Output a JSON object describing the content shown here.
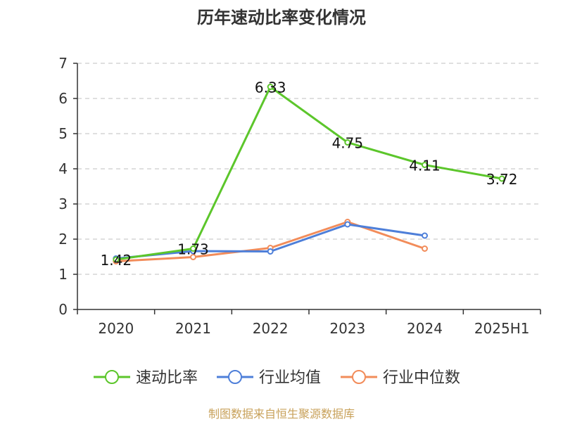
{
  "chart_data": {
    "type": "line",
    "title": "历年速动比率变化情况",
    "categories": [
      "2020",
      "2021",
      "2022",
      "2023",
      "2024",
      "2025H1"
    ],
    "ylim": [
      0,
      7
    ],
    "yticks": [
      0,
      1,
      2,
      3,
      4,
      5,
      6,
      7
    ],
    "grid": true,
    "legend_position": "bottom",
    "series": [
      {
        "name": "速动比率",
        "color": "#5cc62b",
        "values": [
          1.42,
          1.73,
          6.33,
          4.75,
          4.11,
          3.72
        ],
        "labels": [
          "1.42",
          "1.73",
          "6.33",
          "4.75",
          "4.11",
          "3.72"
        ],
        "show_labels": true
      },
      {
        "name": "行业均值",
        "color": "#4e7fd9",
        "values": [
          1.45,
          1.66,
          1.65,
          2.42,
          2.1,
          null
        ],
        "show_labels": false
      },
      {
        "name": "行业中位数",
        "color": "#f28c5a",
        "values": [
          1.37,
          1.49,
          1.75,
          2.49,
          1.73,
          null
        ],
        "show_labels": false
      }
    ],
    "source": "制图数据来自恒生聚源数据库"
  }
}
